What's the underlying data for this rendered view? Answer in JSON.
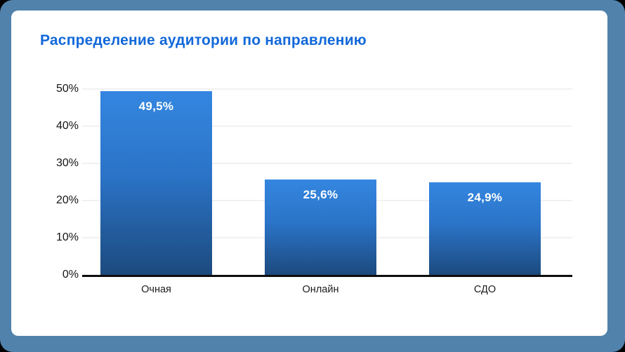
{
  "frame": {
    "background_color": "#5082ac",
    "card_background_color": "#ffffff"
  },
  "chart_data": {
    "type": "bar",
    "title": "Распределение аудитории по направлению",
    "title_color": "#1268d9",
    "categories": [
      "Очная",
      "Онлайн",
      "СДО"
    ],
    "values": [
      49.5,
      25.6,
      24.9
    ],
    "value_labels": [
      "49,5%",
      "25,6%",
      "24,9%"
    ],
    "y_ticks": [
      "0%",
      "10%",
      "20%",
      "30%",
      "40%",
      "50%"
    ],
    "y_tick_values": [
      0,
      10,
      20,
      30,
      40,
      50
    ],
    "ylim": [
      0,
      50
    ],
    "xlabel": "",
    "ylabel": "",
    "grid": true,
    "legend": false,
    "bar_color_top": "#3486e0",
    "bar_color_bottom": "#1c4a7e",
    "value_label_color": "#ffffff"
  }
}
